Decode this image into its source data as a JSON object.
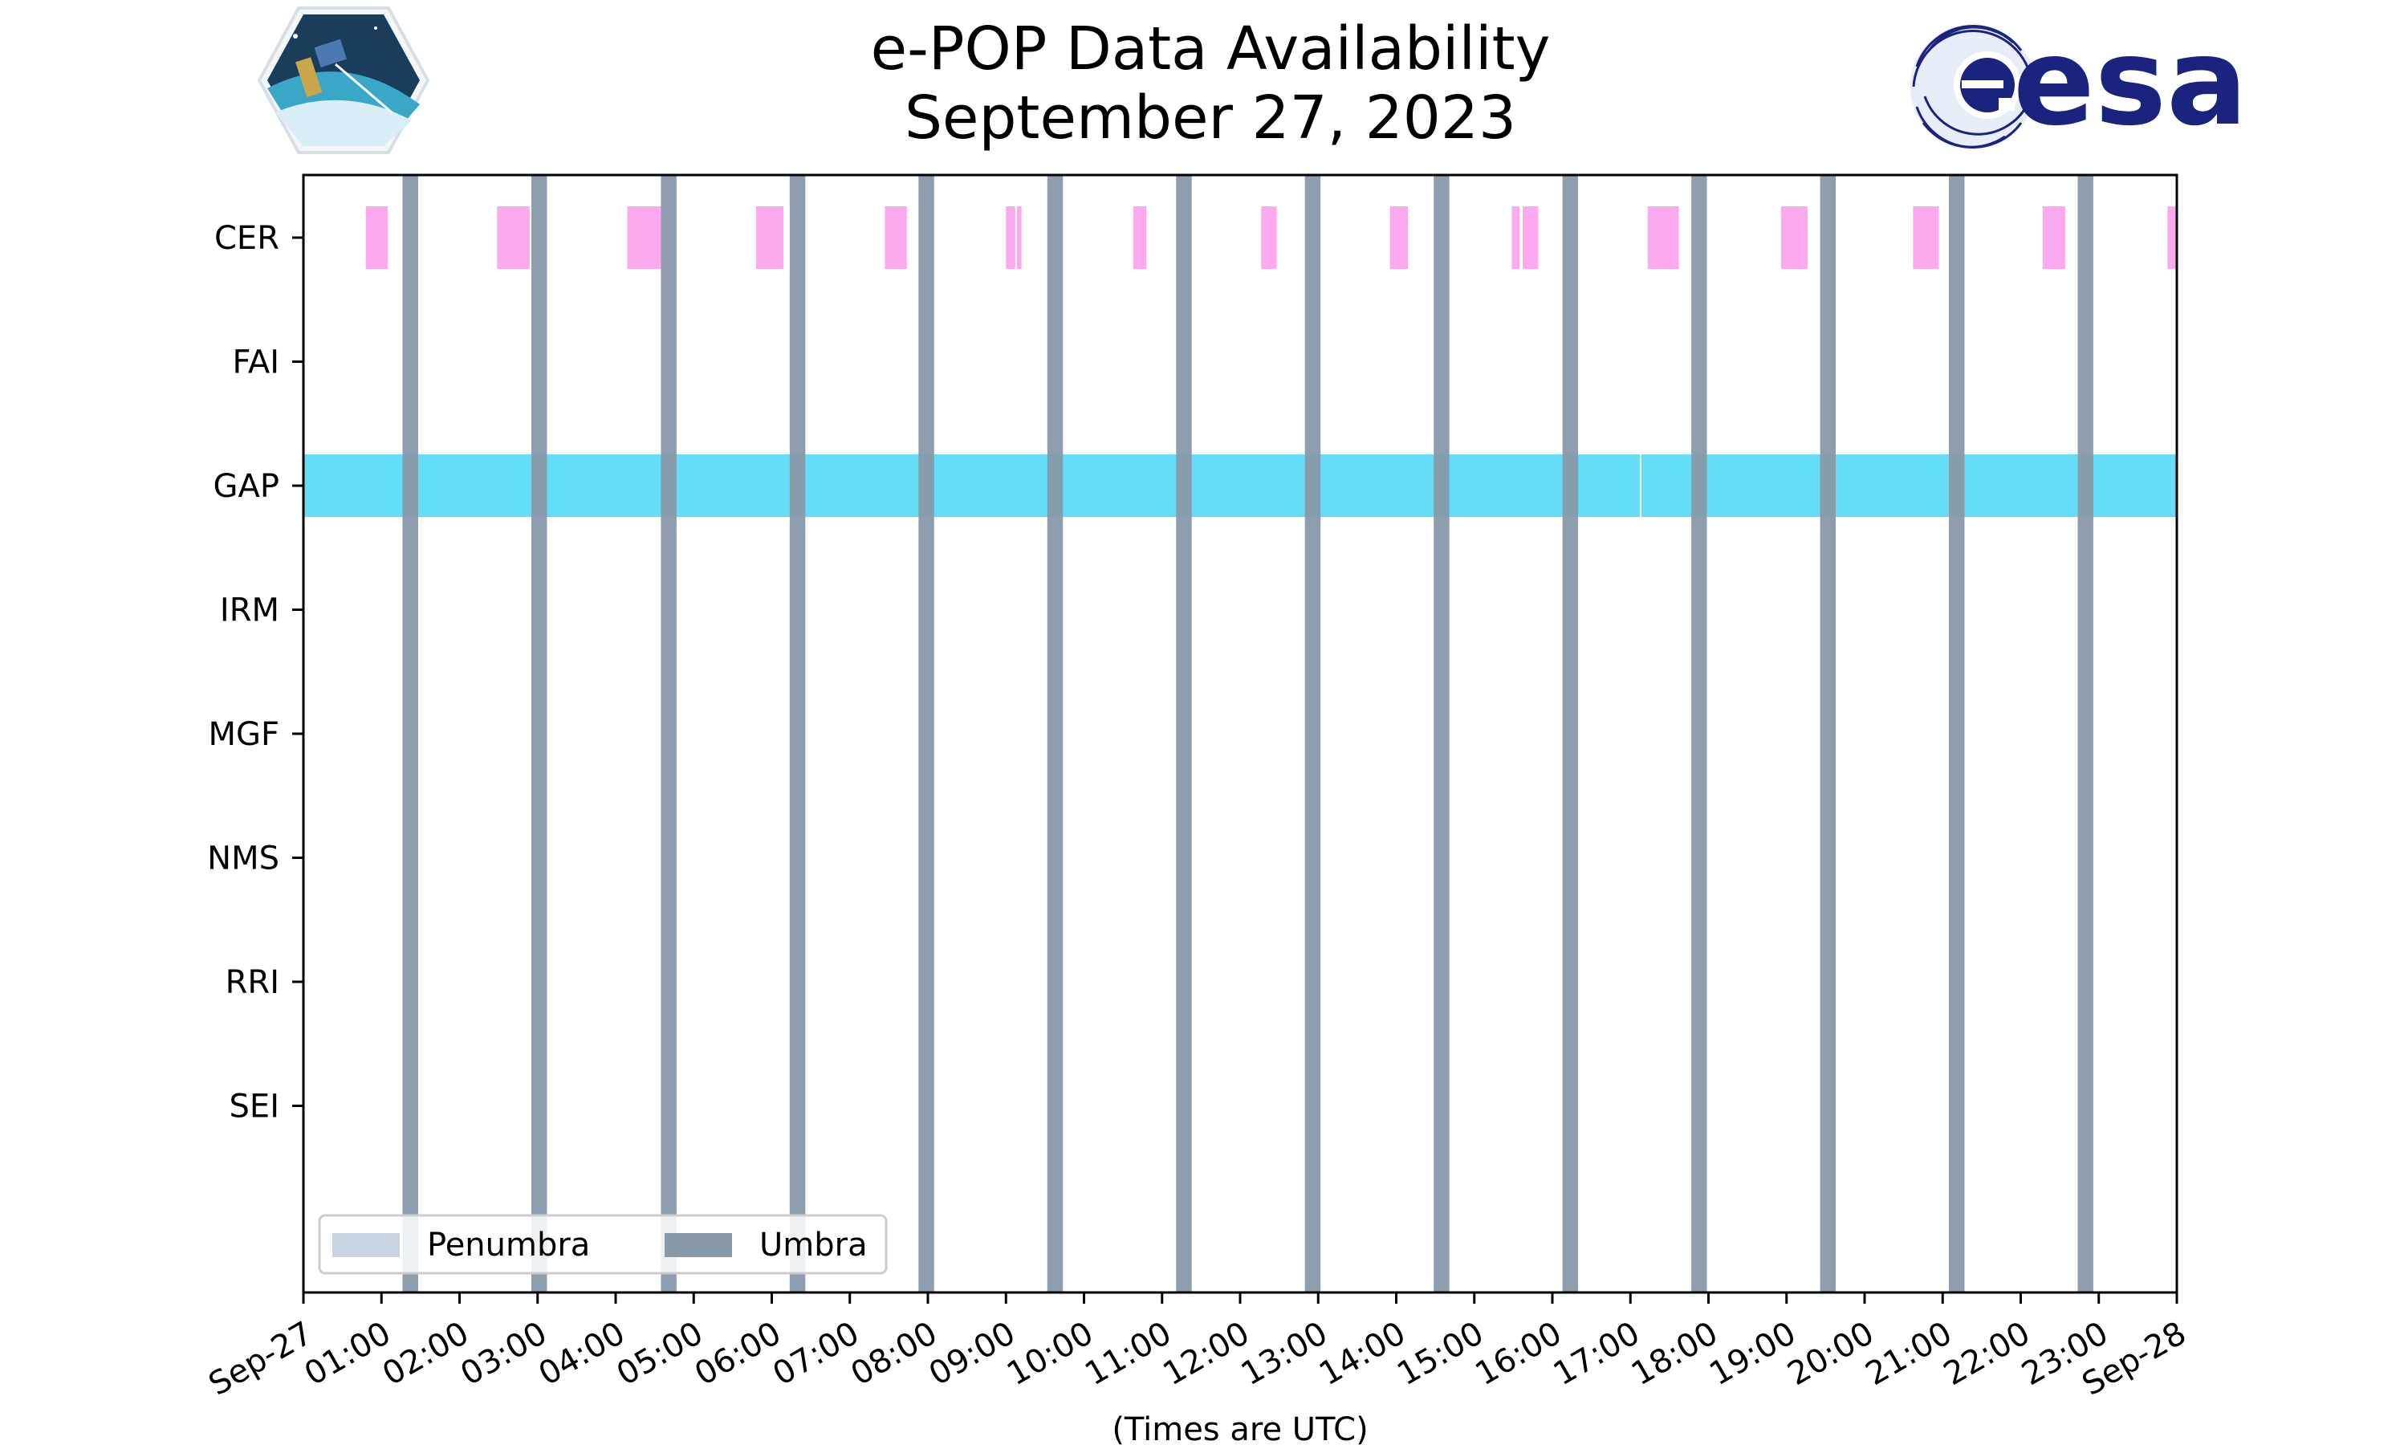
{
  "chart_data": {
    "type": "timeline",
    "title_line1": "e-POP Data Availability",
    "title_line2": "September 27, 2023",
    "xlabel": "(Times are UTC)",
    "xlim_hours": [
      0,
      24
    ],
    "x_tick_labels": [
      "Sep-27",
      "01:00",
      "02:00",
      "03:00",
      "04:00",
      "05:00",
      "06:00",
      "07:00",
      "08:00",
      "09:00",
      "10:00",
      "11:00",
      "12:00",
      "13:00",
      "14:00",
      "15:00",
      "16:00",
      "17:00",
      "18:00",
      "19:00",
      "20:00",
      "21:00",
      "22:00",
      "23:00",
      "Sep-28"
    ],
    "categories": [
      "CER",
      "FAI",
      "GAP",
      "IRM",
      "MGF",
      "NMS",
      "RRI",
      "SEI"
    ],
    "colors": {
      "CER": "#fcaaf0",
      "GAP": "#66ddf6",
      "umbra": "#8899aa",
      "penumbra": "#c8d4e2"
    },
    "series": [
      {
        "category": "CER",
        "intervals": [
          [
            0.8,
            1.08
          ],
          [
            2.48,
            2.9
          ],
          [
            4.15,
            4.58
          ],
          [
            5.8,
            6.15
          ],
          [
            7.45,
            7.73
          ],
          [
            9.0,
            9.12
          ],
          [
            9.14,
            9.2
          ],
          [
            10.63,
            10.8
          ],
          [
            12.27,
            12.47
          ],
          [
            13.92,
            14.15
          ],
          [
            15.48,
            15.58
          ],
          [
            15.62,
            15.82
          ],
          [
            17.22,
            17.62
          ],
          [
            18.93,
            19.27
          ],
          [
            20.62,
            20.95
          ],
          [
            22.28,
            22.57
          ],
          [
            23.88,
            24.0
          ]
        ]
      },
      {
        "category": "FAI",
        "intervals": []
      },
      {
        "category": "GAP",
        "intervals": [
          [
            0.0,
            17.12
          ],
          [
            17.14,
            24.0
          ]
        ]
      },
      {
        "category": "IRM",
        "intervals": []
      },
      {
        "category": "MGF",
        "intervals": []
      },
      {
        "category": "NMS",
        "intervals": []
      },
      {
        "category": "RRI",
        "intervals": []
      },
      {
        "category": "SEI",
        "intervals": []
      }
    ],
    "umbra": [
      [
        1.27,
        1.47
      ],
      [
        2.92,
        3.12
      ],
      [
        4.58,
        4.78
      ],
      [
        6.23,
        6.43
      ],
      [
        7.88,
        8.08
      ],
      [
        9.53,
        9.73
      ],
      [
        11.18,
        11.38
      ],
      [
        12.83,
        13.03
      ],
      [
        14.48,
        14.68
      ],
      [
        16.13,
        16.33
      ],
      [
        17.78,
        17.98
      ],
      [
        19.43,
        19.63
      ],
      [
        21.08,
        21.28
      ],
      [
        22.73,
        22.93
      ]
    ],
    "legend": {
      "position": "lower-left",
      "entries": [
        "Penumbra",
        "Umbra"
      ]
    }
  }
}
